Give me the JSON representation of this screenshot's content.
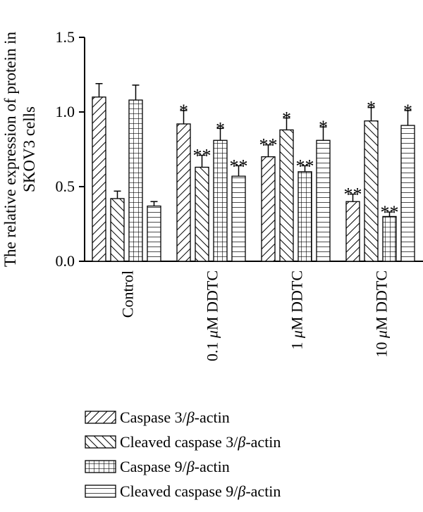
{
  "chart_data": {
    "type": "bar",
    "ylabel_lines": [
      "The relative expression of protein in",
      "SKOV3 cells"
    ],
    "ylim": [
      0,
      1.5
    ],
    "yticks": [
      "0.0",
      "0.5",
      "1.0",
      "1.5"
    ],
    "categories": [
      "Control",
      "0.1 μM DDTC",
      "1 μM DDTC",
      "10 μM DDTC"
    ],
    "category_parts": [
      {
        "pre": "Control",
        "mu": "",
        "post": ""
      },
      {
        "pre": "0.1 ",
        "mu": "μ",
        "post": "M DDTC"
      },
      {
        "pre": "1 ",
        "mu": "μ",
        "post": "M DDTC"
      },
      {
        "pre": "10 ",
        "mu": "μ",
        "post": "M DDTC"
      }
    ],
    "series": [
      {
        "name": "Caspase 3/β-actin",
        "legend": {
          "pre": "Caspase 3/",
          "italic": "β",
          "post": "-actin"
        },
        "pattern": "diag-right",
        "values": [
          1.1,
          0.92,
          0.7,
          0.4
        ],
        "errors": [
          0.09,
          0.09,
          0.08,
          0.05
        ],
        "sig": [
          "",
          "*",
          "**",
          "**"
        ]
      },
      {
        "name": "Cleaved caspase 3/β-actin",
        "legend": {
          "pre": "Cleaved caspase 3/",
          "italic": "β",
          "post": "-actin"
        },
        "pattern": "diag-left",
        "values": [
          0.42,
          0.63,
          0.88,
          0.94
        ],
        "errors": [
          0.05,
          0.08,
          0.08,
          0.09
        ],
        "sig": [
          "",
          "**",
          "*",
          "*"
        ]
      },
      {
        "name": "Caspase 9/β-actin",
        "legend": {
          "pre": "Caspase 9/",
          "italic": "β",
          "post": "-actin"
        },
        "pattern": "grid",
        "values": [
          1.08,
          0.81,
          0.6,
          0.3
        ],
        "errors": [
          0.1,
          0.08,
          0.04,
          0.03
        ],
        "sig": [
          "",
          "*",
          "**",
          "**"
        ]
      },
      {
        "name": "Cleaved caspase 9/β-actin",
        "legend": {
          "pre": "Cleaved caspase 9/",
          "italic": "β",
          "post": "-actin"
        },
        "pattern": "horizontal",
        "values": [
          0.37,
          0.57,
          0.81,
          0.91
        ],
        "errors": [
          0.03,
          0.07,
          0.09,
          0.1
        ],
        "sig": [
          "",
          "**",
          "*",
          "*"
        ]
      }
    ],
    "grid": false,
    "legend_position": "bottom"
  }
}
